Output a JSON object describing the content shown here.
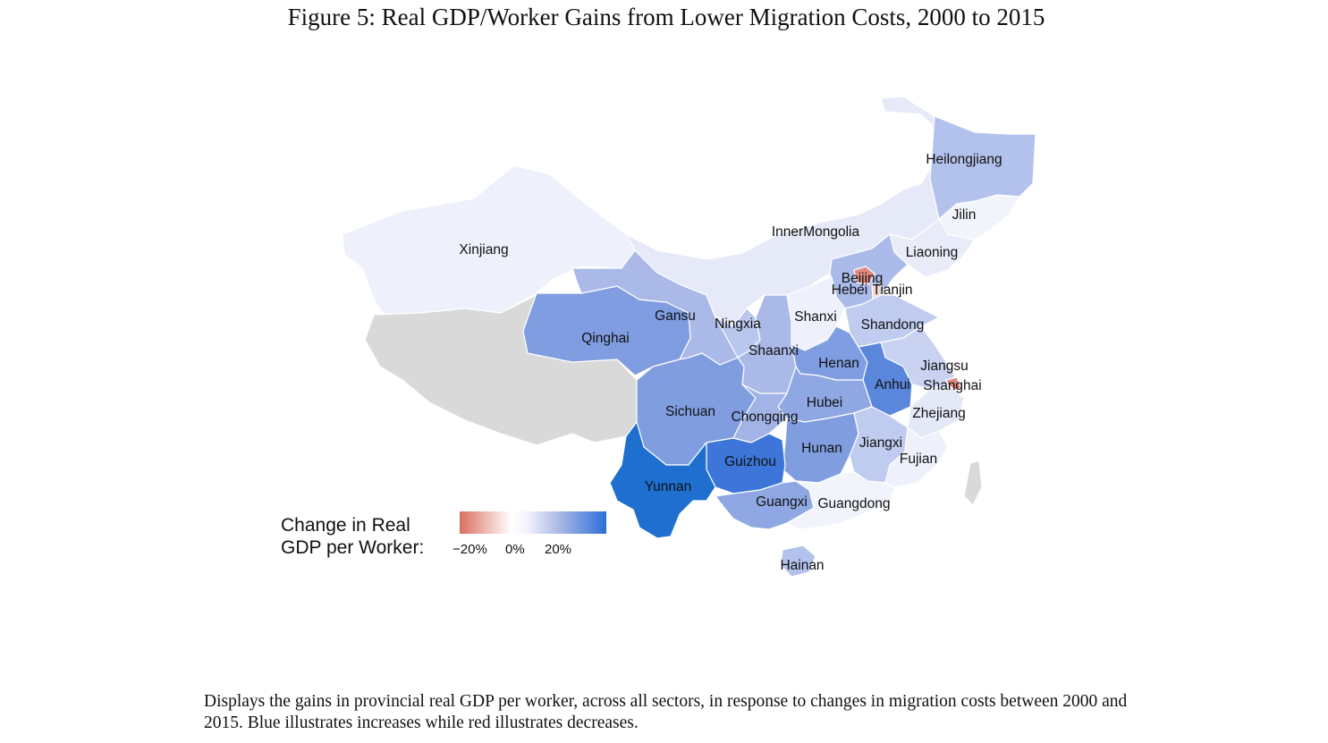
{
  "title": "Figure 5: Real GDP/Worker Gains from Lower Migration Costs, 2000 to 2015",
  "legend": {
    "title_line1": "Change in Real",
    "title_line2": "GDP per Worker:",
    "ticks": [
      "−20%",
      "0%",
      "20%"
    ],
    "low_color": "#d9705f",
    "mid_color": "#ffffff",
    "high_color": "#2c6fd6"
  },
  "map_colors": {
    "no_data": "#d9d9d9",
    "very_light": "#eef1fb",
    "light": "#dce3f6",
    "medium_light": "#b3c2ec",
    "medium": "#a2b4e6",
    "medium_dark": "#7f9de0",
    "dark": "#5a86dc",
    "darkest": "#1e6fd0",
    "decrease": "#e08a80"
  },
  "provinces": [
    {
      "name": "Xinjiang",
      "label": "Xinjiang",
      "color": "#eef1fb"
    },
    {
      "name": "Tibet",
      "label": "",
      "color": "#d9d9d9"
    },
    {
      "name": "Qinghai",
      "label": "Qinghai",
      "color": "#7f9de0"
    },
    {
      "name": "Gansu",
      "label": "Gansu",
      "color": "#aab9e8"
    },
    {
      "name": "InnerMongolia",
      "label": "InnerMongolia",
      "color": "#e6eaf8"
    },
    {
      "name": "Heilongjiang",
      "label": "Heilongjiang",
      "color": "#b3c2ec"
    },
    {
      "name": "Jilin",
      "label": "Jilin",
      "color": "#f2f4fb"
    },
    {
      "name": "Liaoning",
      "label": "Liaoning",
      "color": "#e8ecf9"
    },
    {
      "name": "Hebei",
      "label": "Hebei",
      "color": "#aabbe9"
    },
    {
      "name": "Beijing",
      "label": "Beijing",
      "color": "#e08a80"
    },
    {
      "name": "Tianjin",
      "label": "Tianjin",
      "color": "#f4d8d4"
    },
    {
      "name": "Shanxi",
      "label": "Shanxi",
      "color": "#eef1fb"
    },
    {
      "name": "Shandong",
      "label": "Shandong",
      "color": "#c0ccef"
    },
    {
      "name": "Ningxia",
      "label": "Ningxia",
      "color": "#b9c6ee"
    },
    {
      "name": "Shaanxi",
      "label": "Shaanxi",
      "color": "#aab9e8"
    },
    {
      "name": "Henan",
      "label": "Henan",
      "color": "#7f9de0"
    },
    {
      "name": "Jiangsu",
      "label": "Jiangsu",
      "color": "#c9d3f1"
    },
    {
      "name": "Anhui",
      "label": "Anhui",
      "color": "#5a86dc"
    },
    {
      "name": "Shanghai",
      "label": "Shanghai",
      "color": "#e08a80"
    },
    {
      "name": "Zhejiang",
      "label": "Zhejiang",
      "color": "#e4e9f8"
    },
    {
      "name": "Hubei",
      "label": "Hubei",
      "color": "#8fa8e3"
    },
    {
      "name": "Sichuan",
      "label": "Sichuan",
      "color": "#809edf"
    },
    {
      "name": "Chongqing",
      "label": "Chongqing",
      "color": "#a2b4e6"
    },
    {
      "name": "Hunan",
      "label": "Hunan",
      "color": "#809edf"
    },
    {
      "name": "Jiangxi",
      "label": "Jiangxi",
      "color": "#c0ccef"
    },
    {
      "name": "Fujian",
      "label": "Fujian",
      "color": "#eef1fb"
    },
    {
      "name": "Guizhou",
      "label": "Guizhou",
      "color": "#3d76d8"
    },
    {
      "name": "Yunnan",
      "label": "Yunnan",
      "color": "#1e6fd0"
    },
    {
      "name": "Guangxi",
      "label": "Guangxi",
      "color": "#8fa8e3"
    },
    {
      "name": "Guangdong",
      "label": "Guangdong",
      "color": "#f2f4fb"
    },
    {
      "name": "Hainan",
      "label": "Hainan",
      "color": "#b3c2ec"
    },
    {
      "name": "Taiwan",
      "label": "",
      "color": "#d9d9d9"
    }
  ],
  "caption": "Displays the gains in provincial real GDP per worker, across all sectors, in response to changes in migration costs between 2000 and 2015. Blue illustrates increases while red illustrates decreases."
}
